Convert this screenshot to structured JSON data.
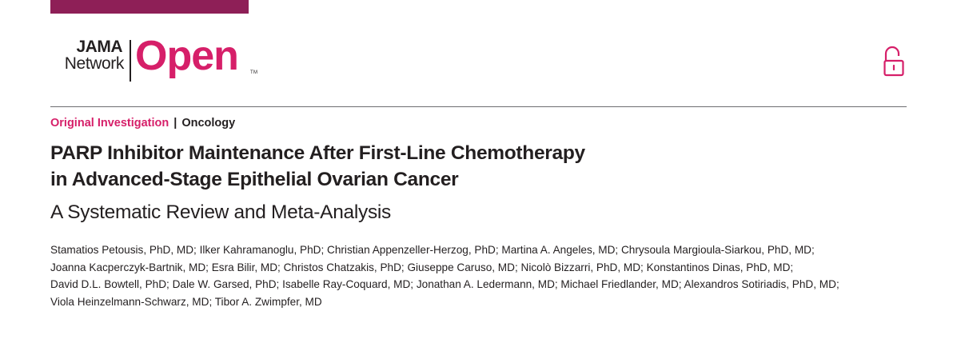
{
  "header": {
    "logo": {
      "top_word": "JAMA",
      "bottom_word": "Network",
      "brand_word": "Open",
      "trademark": "TM"
    },
    "access_icon": "unlocked-padlock-icon",
    "colors": {
      "brand_magenta": "#d61f69",
      "top_bar": "#8e1f57",
      "text": "#231f20"
    }
  },
  "article": {
    "article_type": "Original Investigation",
    "separator": "|",
    "subject": "Oncology",
    "title_lines": [
      "PARP Inhibitor Maintenance After First-Line Chemotherapy",
      "in Advanced-Stage Epithelial Ovarian Cancer"
    ],
    "subtitle": "A Systematic Review and Meta-Analysis",
    "author_lines": [
      "Stamatios Petousis, PhD, MD; Ilker Kahramanoglu, PhD; Christian Appenzeller-Herzog, PhD; Martina A. Angeles, MD; Chrysoula Margioula-Siarkou, PhD, MD;",
      "Joanna Kacperczyk-Bartnik, MD; Esra Bilir, MD; Christos Chatzakis, PhD; Giuseppe Caruso, MD; Nicolò Bizzarri, PhD, MD; Konstantinos Dinas, PhD, MD;",
      "David D.L. Bowtell, PhD; Dale W. Garsed, PhD; Isabelle Ray-Coquard, MD; Jonathan A. Ledermann, MD; Michael Friedlander, MD; Alexandros Sotiriadis, PhD, MD;",
      "Viola Heinzelmann-Schwarz, MD; Tibor A. Zwimpfer, MD"
    ]
  }
}
